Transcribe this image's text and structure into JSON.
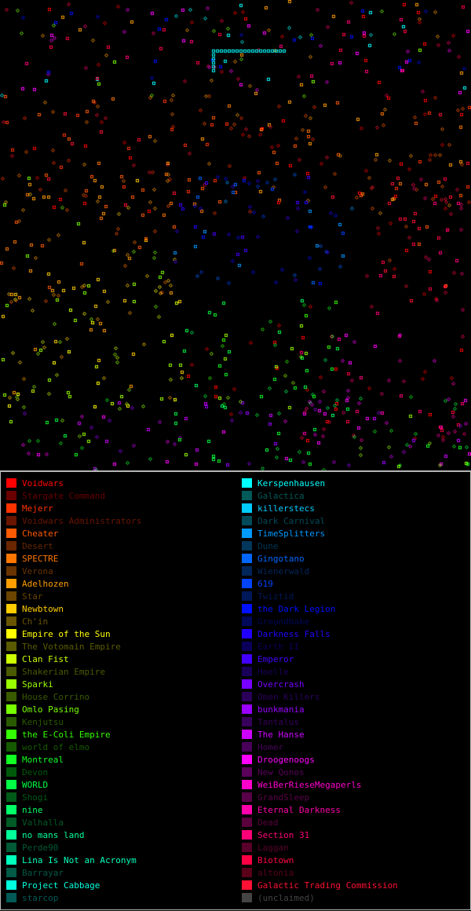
{
  "map": {
    "background": "#000000",
    "empire_colors": {
      "Voidwars": "#ff0000",
      "Mejerr": "#ff3300",
      "Cheater": "#ff5a00",
      "SPECTRE": "#ff7700",
      "Adelhozen": "#ff9d00",
      "Newbtown": "#ffcc00",
      "Empire of the Sun": "#ffff00",
      "Clan Fist": "#ccff00",
      "Sparki": "#99ff00",
      "Omlo Pasing": "#77ff00",
      "the E-Coli Empire": "#33ff00",
      "Montreal": "#11ff22",
      "WORLD": "#00ff44",
      "nine": "#00ff66",
      "no mans land": "#00ff99",
      "Lina Is Not an Acronym": "#00ffbb",
      "Project Cabbage": "#00ffdd",
      "Kerspenhausen": "#00ffff",
      "killerstecs": "#00ccff",
      "TimeSplitters": "#0099ff",
      "Gingotano": "#0066ff",
      "619": "#0044ff",
      "the Dark Legion": "#0011ff",
      "Darkness Falls": "#2200ff",
      "Emperor": "#4400ff",
      "Overcrash": "#7700ff",
      "bunkmania": "#9900ff",
      "The Hanse": "#cc00ff",
      "Droogenoogs": "#ff00ff",
      "WeiBerRieseMegaperls": "#ff00cc",
      "Eternal Darkness": "#ff00aa",
      "Section 31": "#ff0077",
      "Biotown": "#ff0044",
      "Galactic Trading Commission": "#ff1133"
    }
  },
  "legend": {
    "left": [
      {
        "label": "Voidwars",
        "color": "#ff0000",
        "active": true
      },
      {
        "label": "Stargate Command",
        "color": "#6a0000",
        "active": false
      },
      {
        "label": "Mejerr",
        "color": "#ff3300",
        "active": true
      },
      {
        "label": "Voidwars Administrators",
        "color": "#6a1500",
        "active": false
      },
      {
        "label": "Cheater",
        "color": "#ff5a00",
        "active": true
      },
      {
        "label": "Desert",
        "color": "#6a2600",
        "active": false
      },
      {
        "label": "SPECTRE",
        "color": "#ff7700",
        "active": true
      },
      {
        "label": "Verona",
        "color": "#6a3300",
        "active": false
      },
      {
        "label": "Adelhozen",
        "color": "#ff9d00",
        "active": true
      },
      {
        "label": "Star",
        "color": "#6a4400",
        "active": false
      },
      {
        "label": "Newbtown",
        "color": "#ffcc00",
        "active": true
      },
      {
        "label": "Ch'in",
        "color": "#6a5500",
        "active": false
      },
      {
        "label": "Empire of the Sun",
        "color": "#ffff00",
        "active": true
      },
      {
        "label": "The Votomain Empire",
        "color": "#5a5a00",
        "active": false
      },
      {
        "label": "Clan Fist",
        "color": "#ccff00",
        "active": true
      },
      {
        "label": "Shakerian Empire",
        "color": "#4a5a00",
        "active": false
      },
      {
        "label": "Sparki",
        "color": "#99ff00",
        "active": true
      },
      {
        "label": "House Corrino",
        "color": "#3a5a00",
        "active": false
      },
      {
        "label": "Omlo Pasing",
        "color": "#77ff00",
        "active": true
      },
      {
        "label": "Kenjutsu",
        "color": "#2a5a00",
        "active": false
      },
      {
        "label": "the E-Coli Empire",
        "color": "#33ff00",
        "active": true
      },
      {
        "label": "world of elmo",
        "color": "#155a00",
        "active": false
      },
      {
        "label": "Montreal",
        "color": "#11ff22",
        "active": true
      },
      {
        "label": "Devon",
        "color": "#005a0a",
        "active": false
      },
      {
        "label": "WORLD",
        "color": "#00ff44",
        "active": true
      },
      {
        "label": "Shogi",
        "color": "#005a18",
        "active": false
      },
      {
        "label": "nine",
        "color": "#00ff66",
        "active": true
      },
      {
        "label": "Valhalla",
        "color": "#005a25",
        "active": false
      },
      {
        "label": "no mans land",
        "color": "#00ff99",
        "active": true
      },
      {
        "label": "Perde90",
        "color": "#005a35",
        "active": false
      },
      {
        "label": "Lina Is Not an Acronym",
        "color": "#00ffbb",
        "active": true
      },
      {
        "label": "Barrayar",
        "color": "#005a45",
        "active": false
      },
      {
        "label": "Project Cabbage",
        "color": "#00ffdd",
        "active": true
      },
      {
        "label": "starcop",
        "color": "#005a55",
        "active": false
      }
    ],
    "right": [
      {
        "label": "Kerspenhausen",
        "color": "#00ffff",
        "active": true
      },
      {
        "label": "Galactica",
        "color": "#005a5a",
        "active": false
      },
      {
        "label": "killerstecs",
        "color": "#00ccff",
        "active": true
      },
      {
        "label": "Dark Carnival",
        "color": "#004a5a",
        "active": false
      },
      {
        "label": "TimeSplitters",
        "color": "#0099ff",
        "active": true
      },
      {
        "label": "Dune",
        "color": "#00375a",
        "active": false
      },
      {
        "label": "Gingotano",
        "color": "#0066ff",
        "active": true
      },
      {
        "label": "Wienerwald",
        "color": "#00255a",
        "active": false
      },
      {
        "label": "619",
        "color": "#0044ff",
        "active": true
      },
      {
        "label": "Twiztid",
        "color": "#00185a",
        "active": false
      },
      {
        "label": "the Dark Legion",
        "color": "#0011ff",
        "active": true
      },
      {
        "label": "Groundbake",
        "color": "#00085a",
        "active": false
      },
      {
        "label": "Darkness Falls",
        "color": "#2200ff",
        "active": true
      },
      {
        "label": "Earth II",
        "color": "#0a005a",
        "active": false
      },
      {
        "label": "Emperor",
        "color": "#4400ff",
        "active": true
      },
      {
        "label": "Hoelle",
        "color": "#18005a",
        "active": false
      },
      {
        "label": "Overcrash",
        "color": "#7700ff",
        "active": true
      },
      {
        "label": "Omen Killers",
        "color": "#2a005a",
        "active": false
      },
      {
        "label": "bunkmania",
        "color": "#9900ff",
        "active": true
      },
      {
        "label": "Tantalus",
        "color": "#37005a",
        "active": false
      },
      {
        "label": "The Hanse",
        "color": "#cc00ff",
        "active": true
      },
      {
        "label": "Homer",
        "color": "#48005a",
        "active": false
      },
      {
        "label": "Droogenoogs",
        "color": "#ff00ff",
        "active": true
      },
      {
        "label": "New Qonos",
        "color": "#5a005a",
        "active": false
      },
      {
        "label": "WeiBerRieseMegaperls",
        "color": "#ff00cc",
        "active": true
      },
      {
        "label": "GrandSleep",
        "color": "#5a0048",
        "active": false
      },
      {
        "label": "Eternal Darkness",
        "color": "#ff00aa",
        "active": true
      },
      {
        "label": "Dead",
        "color": "#5a003c",
        "active": false
      },
      {
        "label": "Section 31",
        "color": "#ff0077",
        "active": true
      },
      {
        "label": "Laggan",
        "color": "#5a002a",
        "active": false
      },
      {
        "label": "Biotown",
        "color": "#ff0044",
        "active": true
      },
      {
        "label": "altonia",
        "color": "#5a0018",
        "active": false
      },
      {
        "label": "Galactic Trading Commission",
        "color": "#ff1133",
        "active": true
      },
      {
        "label": "(unclaimed)",
        "color": "#444444",
        "active": false
      }
    ]
  }
}
